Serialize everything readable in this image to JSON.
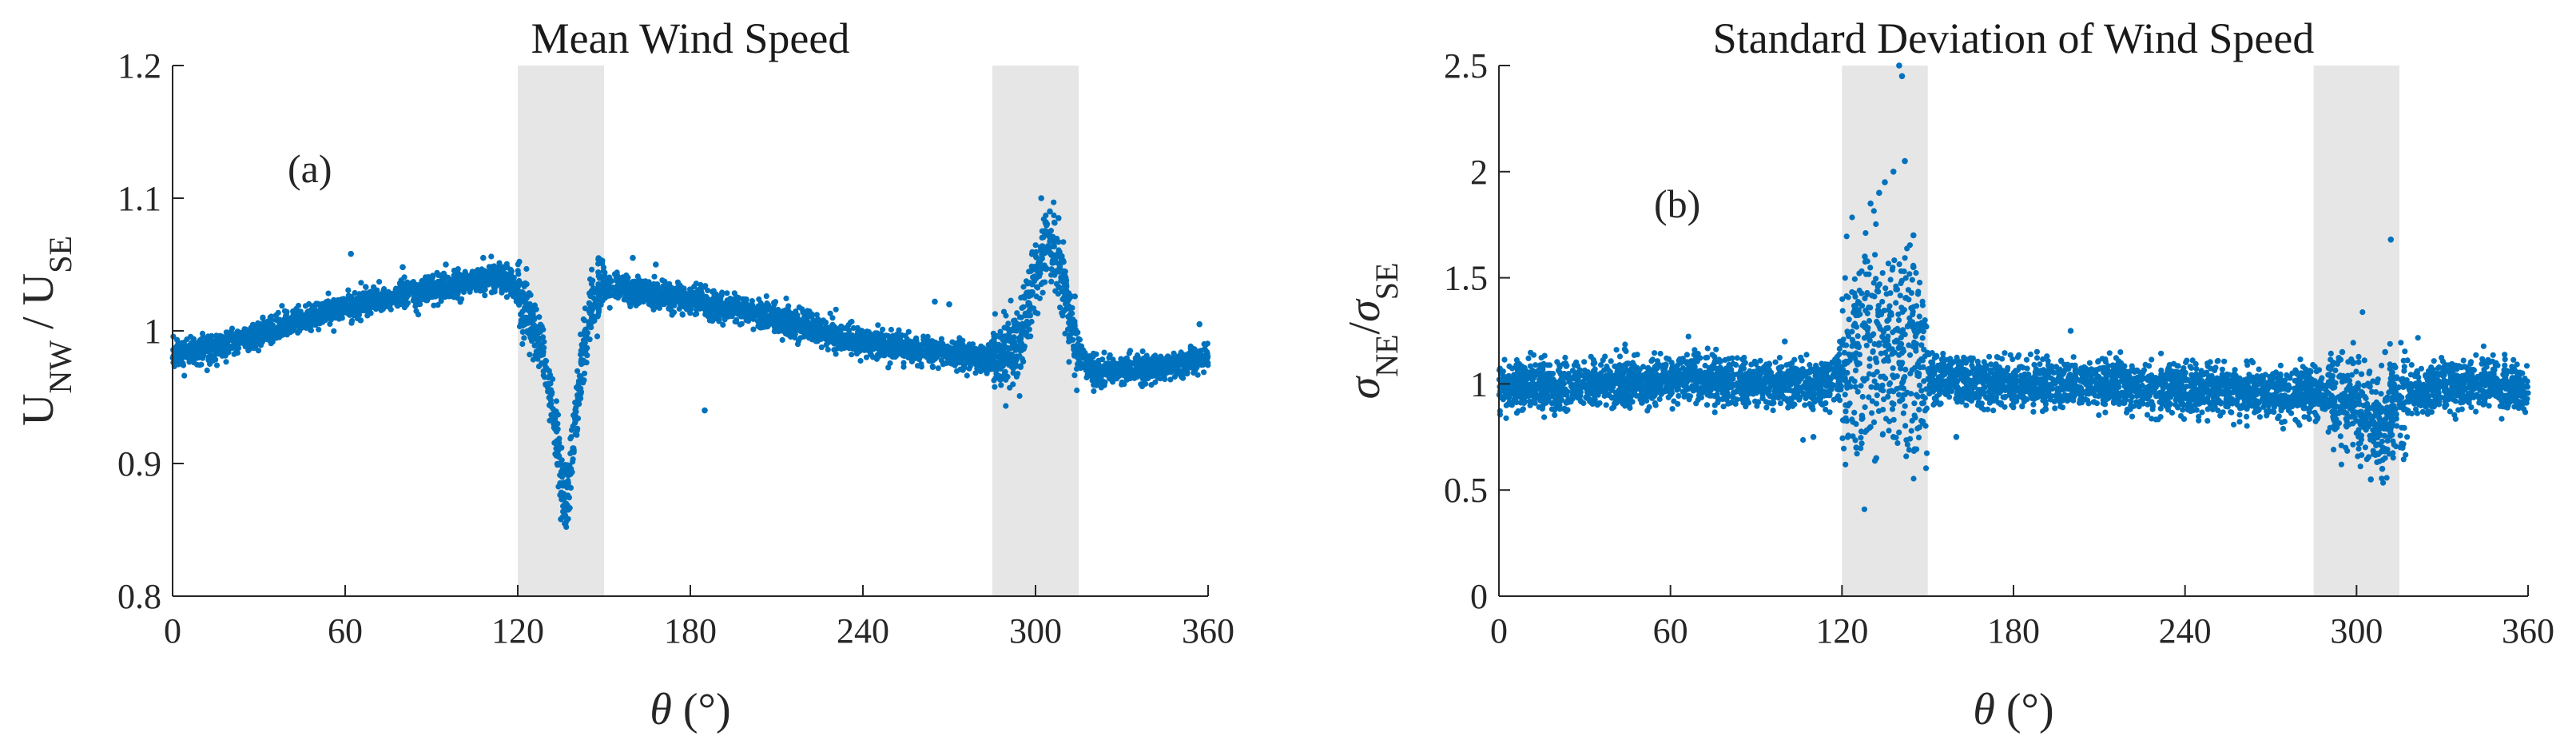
{
  "chart_data": [
    {
      "type": "scatter",
      "title": "Mean Wind Speed",
      "panel_label": "(a)",
      "xlabel": "θ (°)",
      "xlabel_parts": {
        "main": "θ",
        "rest": " (°)"
      },
      "ylabel_parts": {
        "a": "U",
        "a_sub": "NW",
        "sep": " / ",
        "b": "U",
        "b_sub": "SE"
      },
      "xlim": [
        0,
        360
      ],
      "ylim": [
        0.8,
        1.2
      ],
      "xticks": [
        "0",
        "60",
        "120",
        "180",
        "240",
        "300",
        "360"
      ],
      "yticks": [
        "0.8",
        "0.9",
        "1",
        "1.1",
        "1.2"
      ],
      "xtick_values": [
        0,
        60,
        120,
        180,
        240,
        300,
        360
      ],
      "ytick_values": [
        0.8,
        0.9,
        1.0,
        1.1,
        1.2
      ],
      "shaded_sectors": [
        [
          120,
          150
        ],
        [
          285,
          315
        ]
      ],
      "marker_color": "#0072bd",
      "shade_color": "#e6e6e6",
      "trend": [
        [
          0,
          0.982
        ],
        [
          20,
          0.99
        ],
        [
          40,
          1.005
        ],
        [
          60,
          1.018
        ],
        [
          80,
          1.027
        ],
        [
          100,
          1.035
        ],
        [
          112,
          1.04
        ],
        [
          116,
          1.038
        ],
        [
          120,
          1.03
        ],
        [
          124,
          1.012
        ],
        [
          128,
          0.985
        ],
        [
          131,
          0.955
        ],
        [
          133,
          0.925
        ],
        [
          135,
          0.895
        ],
        [
          136,
          0.875
        ],
        [
          137,
          0.87
        ],
        [
          138,
          0.885
        ],
        [
          140,
          0.93
        ],
        [
          142,
          0.975
        ],
        [
          145,
          1.01
        ],
        [
          148,
          1.03
        ],
        [
          150,
          1.033
        ],
        [
          160,
          1.03
        ],
        [
          180,
          1.024
        ],
        [
          200,
          1.014
        ],
        [
          220,
          1.003
        ],
        [
          240,
          0.992
        ],
        [
          260,
          0.985
        ],
        [
          280,
          0.98
        ],
        [
          290,
          0.98
        ],
        [
          295,
          0.995
        ],
        [
          300,
          1.04
        ],
        [
          303,
          1.065
        ],
        [
          306,
          1.06
        ],
        [
          309,
          1.04
        ],
        [
          312,
          1.01
        ],
        [
          316,
          0.98
        ],
        [
          320,
          0.97
        ],
        [
          330,
          0.97
        ],
        [
          340,
          0.972
        ],
        [
          350,
          0.975
        ],
        [
          360,
          0.98
        ]
      ],
      "outliers": [
        [
          62,
          1.058
        ],
        [
          80,
          1.048
        ],
        [
          95,
          1.05
        ],
        [
          103,
          1.04
        ],
        [
          108,
          1.055
        ],
        [
          135,
          0.858
        ],
        [
          137,
          0.865
        ],
        [
          160,
          1.055
        ],
        [
          168,
          1.05
        ],
        [
          185,
          0.94
        ],
        [
          265,
          1.022
        ],
        [
          270,
          1.02
        ],
        [
          302,
          1.1
        ],
        [
          305,
          1.09
        ],
        [
          308,
          1.085
        ],
        [
          290,
          0.995
        ],
        [
          357,
          1.005
        ]
      ]
    },
    {
      "type": "scatter",
      "title": "Standard Deviation of Wind Speed",
      "panel_label": "(b)",
      "xlabel": "θ (°)",
      "xlabel_parts": {
        "main": "θ",
        "rest": " (°)"
      },
      "ylabel_parts": {
        "a": "σ",
        "a_sub": "NE",
        "sep": "/",
        "b": "σ",
        "b_sub": "SE"
      },
      "xlim": [
        0,
        360
      ],
      "ylim": [
        0,
        2.5
      ],
      "xticks": [
        "0",
        "60",
        "120",
        "180",
        "240",
        "300",
        "360"
      ],
      "yticks": [
        "0",
        "0.5",
        "1",
        "1.5",
        "2",
        "2.5"
      ],
      "xtick_values": [
        0,
        60,
        120,
        180,
        240,
        300,
        360
      ],
      "ytick_values": [
        0,
        0.5,
        1.0,
        1.5,
        2.0,
        2.5
      ],
      "shaded_sectors": [
        [
          120,
          150
        ],
        [
          285,
          315
        ]
      ],
      "marker_color": "#0072bd",
      "shade_color": "#e6e6e6",
      "trend": [
        [
          0,
          0.98
        ],
        [
          30,
          0.99
        ],
        [
          60,
          1.02
        ],
        [
          70,
          1.03
        ],
        [
          90,
          1.0
        ],
        [
          110,
          1.0
        ],
        [
          120,
          1.05
        ],
        [
          125,
          1.1
        ],
        [
          130,
          1.2
        ],
        [
          135,
          1.2
        ],
        [
          140,
          1.15
        ],
        [
          145,
          1.1
        ],
        [
          150,
          1.03
        ],
        [
          180,
          1.0
        ],
        [
          210,
          1.0
        ],
        [
          240,
          0.98
        ],
        [
          270,
          0.96
        ],
        [
          290,
          0.95
        ],
        [
          300,
          0.9
        ],
        [
          305,
          0.85
        ],
        [
          310,
          0.82
        ],
        [
          315,
          0.9
        ],
        [
          320,
          0.98
        ],
        [
          340,
          1.0
        ],
        [
          360,
          0.98
        ]
      ],
      "outliers": [
        [
          140,
          2.5
        ],
        [
          141,
          2.45
        ],
        [
          142,
          2.05
        ],
        [
          138,
          2.0
        ],
        [
          135,
          1.95
        ],
        [
          130,
          1.85
        ],
        [
          133,
          1.9
        ],
        [
          145,
          1.7
        ],
        [
          128,
          1.6
        ],
        [
          145,
          1.55
        ],
        [
          125,
          0.7
        ],
        [
          132,
          0.65
        ],
        [
          138,
          0.75
        ],
        [
          122,
          0.75
        ],
        [
          127,
          0.85
        ],
        [
          110,
          0.75
        ],
        [
          100,
          1.2
        ],
        [
          200,
          1.25
        ],
        [
          312,
          1.68
        ],
        [
          305,
          0.55
        ],
        [
          309,
          0.6
        ],
        [
          310,
          1.15
        ],
        [
          295,
          1.15
        ],
        [
          160,
          0.75
        ]
      ]
    }
  ]
}
